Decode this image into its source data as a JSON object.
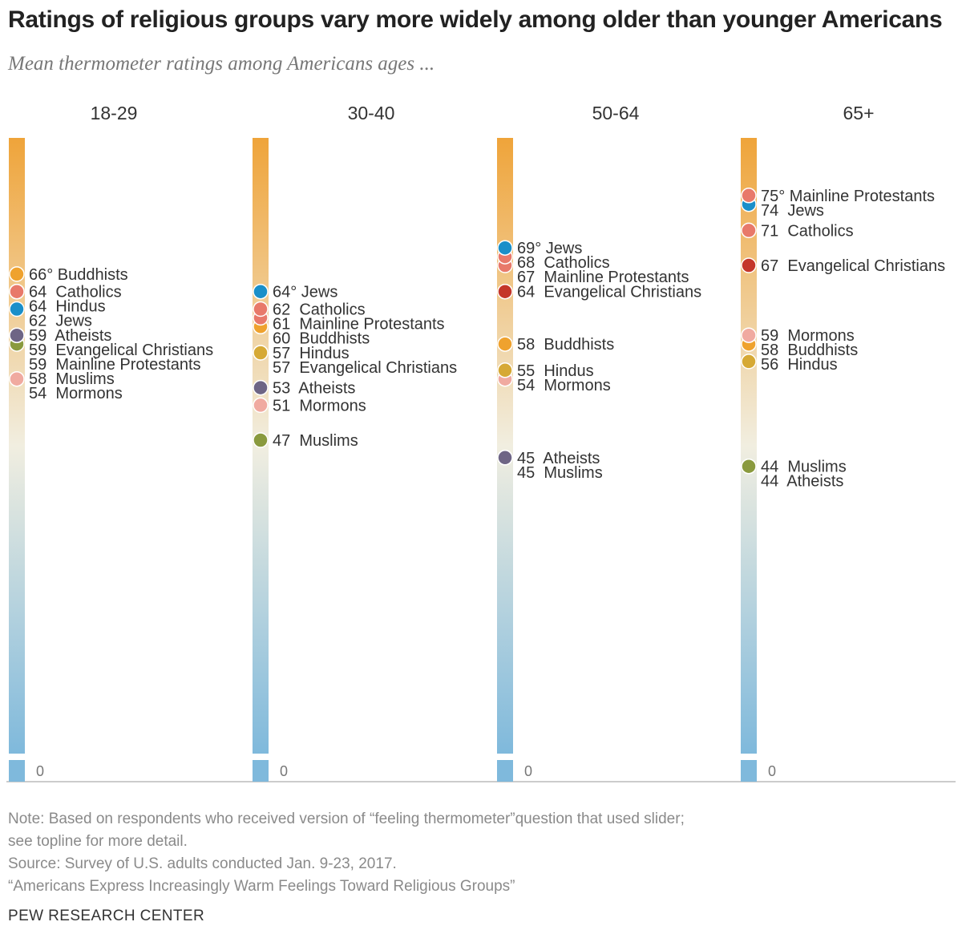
{
  "title": "Ratings of religious groups vary more widely among older than younger Americans",
  "subtitle": "Mean thermometer ratings among Americans ages ...",
  "notes": [
    "Note: Based on respondents who received version of “feeling thermometer”question that used slider;",
    "see topline for more detail.",
    "Source: Survey of U.S. adults conducted Jan. 9-23, 2017.",
    "“Americans Express Increasingly Warm Feelings Toward Religious Groups”"
  ],
  "source_org": "PEW RESEARCH CENTER",
  "colors": {
    "Jews": "#1a8fc9",
    "Catholics": "#e8796a",
    "Mainline Protestants": "#e8796a",
    "Evangelical Christians": "#c4362a",
    "Buddhists": "#efa22e",
    "Hindus": "#d6a935",
    "Mormons": "#f0aaa0",
    "Atheists": "#6e6585",
    "Muslims": "#8a9a3e",
    "bar_top": "#efa43a",
    "bar_mid": "#f1eee0",
    "bar_bottom": "#7fb9dc"
  },
  "chart_data": {
    "type": "scatter",
    "title": "Ratings of religious groups vary more widely among older than younger Americans",
    "subtitle": "Mean thermometer ratings among Americans ages ...",
    "ylim": [
      0,
      76
    ],
    "zero_label": "0",
    "degree_symbol": "°",
    "columns": [
      {
        "header": "18-29",
        "points": [
          {
            "group": "Buddhists",
            "value": 66,
            "label": "66° Buddhists"
          },
          {
            "group": "Catholics",
            "value": 64,
            "label": "64  Catholics"
          },
          {
            "group": "Hindus",
            "value": 64,
            "label": "64  Hindus"
          },
          {
            "group": "Jews",
            "value": 62,
            "label": "62  Jews"
          },
          {
            "group": "Atheists",
            "value": 59,
            "label": "59  Atheists"
          },
          {
            "group": "Evangelical Christians",
            "value": 59,
            "label": "59  Evangelical Christians"
          },
          {
            "group": "Mainline Protestants",
            "value": 59,
            "label": "59  Mainline Protestants"
          },
          {
            "group": "Muslims",
            "value": 58,
            "label": "58  Muslims"
          },
          {
            "group": "Mormons",
            "value": 54,
            "label": "54  Mormons"
          }
        ]
      },
      {
        "header": "30-40",
        "points": [
          {
            "group": "Jews",
            "value": 64,
            "label": "64° Jews"
          },
          {
            "group": "Catholics",
            "value": 62,
            "label": "62  Catholics"
          },
          {
            "group": "Mainline Protestants",
            "value": 61,
            "label": "61  Mainline Protestants"
          },
          {
            "group": "Buddhists",
            "value": 60,
            "label": "60  Buddhists"
          },
          {
            "group": "Hindus",
            "value": 57,
            "label": "57  Hindus"
          },
          {
            "group": "Evangelical Christians",
            "value": 57,
            "label": "57  Evangelical Christians"
          },
          {
            "group": "Atheists",
            "value": 53,
            "label": "53  Atheists"
          },
          {
            "group": "Mormons",
            "value": 51,
            "label": "51  Mormons"
          },
          {
            "group": "Muslims",
            "value": 47,
            "label": "47  Muslims"
          }
        ]
      },
      {
        "header": "50-64",
        "points": [
          {
            "group": "Jews",
            "value": 69,
            "label": "69° Jews"
          },
          {
            "group": "Catholics",
            "value": 68,
            "label": "68  Catholics"
          },
          {
            "group": "Mainline Protestants",
            "value": 67,
            "label": "67  Mainline Protestants"
          },
          {
            "group": "Evangelical Christians",
            "value": 64,
            "label": "64  Evangelical Christians"
          },
          {
            "group": "Buddhists",
            "value": 58,
            "label": "58  Buddhists"
          },
          {
            "group": "Hindus",
            "value": 55,
            "label": "55  Hindus"
          },
          {
            "group": "Mormons",
            "value": 54,
            "label": "54  Mormons"
          },
          {
            "group": "Atheists",
            "value": 45,
            "label": "45  Atheists"
          },
          {
            "group": "Muslims",
            "value": 45,
            "label": "45  Muslims"
          }
        ]
      },
      {
        "header": "65+",
        "points": [
          {
            "group": "Mainline Protestants",
            "value": 75,
            "label": "75° Mainline Protestants"
          },
          {
            "group": "Jews",
            "value": 74,
            "label": "74  Jews"
          },
          {
            "group": "Catholics",
            "value": 71,
            "label": "71  Catholics"
          },
          {
            "group": "Evangelical Christians",
            "value": 67,
            "label": "67  Evangelical Christians"
          },
          {
            "group": "Mormons",
            "value": 59,
            "label": "59  Mormons"
          },
          {
            "group": "Buddhists",
            "value": 58,
            "label": "58  Buddhists"
          },
          {
            "group": "Hindus",
            "value": 56,
            "label": "56  Hindus"
          },
          {
            "group": "Muslims",
            "value": 44,
            "label": "44  Muslims"
          },
          {
            "group": "Atheists",
            "value": 44,
            "label": "44  Atheists"
          }
        ]
      }
    ]
  }
}
